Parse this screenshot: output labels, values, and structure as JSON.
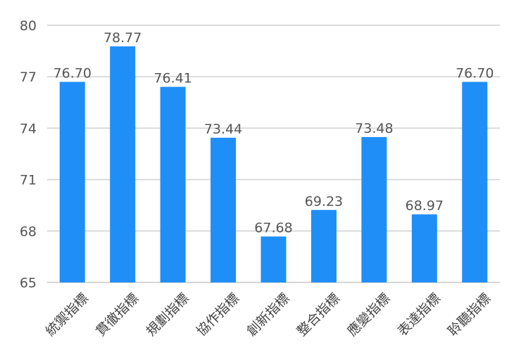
{
  "chart_data": {
    "type": "bar",
    "categories": [
      "統禦指標",
      "貫徹指標",
      "規劃指標",
      "協作指標",
      "創新指標",
      "整合指標",
      "應變指標",
      "表達指標",
      "聆聽指標"
    ],
    "values": [
      76.7,
      78.77,
      76.41,
      73.44,
      67.68,
      69.23,
      73.48,
      68.97,
      76.7
    ],
    "data_labels": [
      "76.70",
      "78.77",
      "76.41",
      "73.44",
      "67.68",
      "69.23",
      "73.48",
      "68.97",
      "76.70"
    ],
    "yticks": [
      65,
      68,
      71,
      74,
      77,
      80
    ],
    "ylim": [
      65,
      80
    ],
    "grid": true,
    "bar_color": "#1f8ff7",
    "grid_color": "#d0d0d0"
  }
}
